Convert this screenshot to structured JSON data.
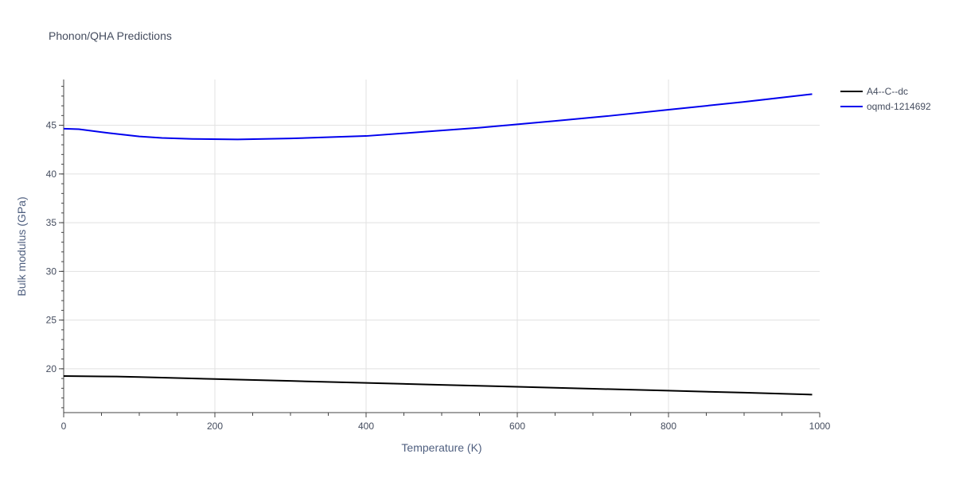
{
  "chart_data": {
    "type": "line",
    "title": "Phonon/QHA Predictions",
    "xlabel": "Temperature (K)",
    "ylabel": "Bulk modulus (GPa)",
    "xlim": [
      0,
      1000
    ],
    "ylim": [
      15.5,
      49.7
    ],
    "xticks": [
      0,
      200,
      400,
      600,
      800,
      1000
    ],
    "yticks": [
      20,
      25,
      30,
      35,
      40,
      45
    ],
    "grid": true,
    "legend_position": "top-right",
    "series": [
      {
        "name": "A4--C--dc",
        "color": "#000000",
        "x": [
          0,
          70,
          100,
          150,
          200,
          300,
          400,
          500,
          600,
          700,
          800,
          900,
          990
        ],
        "y": [
          19.25,
          19.2,
          19.15,
          19.05,
          18.95,
          18.75,
          18.55,
          18.35,
          18.15,
          17.95,
          17.75,
          17.55,
          17.35
        ]
      },
      {
        "name": "oqmd-1214692",
        "color": "#0000ee",
        "x": [
          0,
          20,
          60,
          100,
          130,
          170,
          230,
          300,
          380,
          400,
          480,
          550,
          600,
          650,
          720,
          800,
          900,
          990
        ],
        "y": [
          44.65,
          44.6,
          44.2,
          43.85,
          43.7,
          43.6,
          43.55,
          43.65,
          43.85,
          43.9,
          44.35,
          44.75,
          45.1,
          45.45,
          45.95,
          46.6,
          47.4,
          48.2
        ]
      }
    ]
  }
}
